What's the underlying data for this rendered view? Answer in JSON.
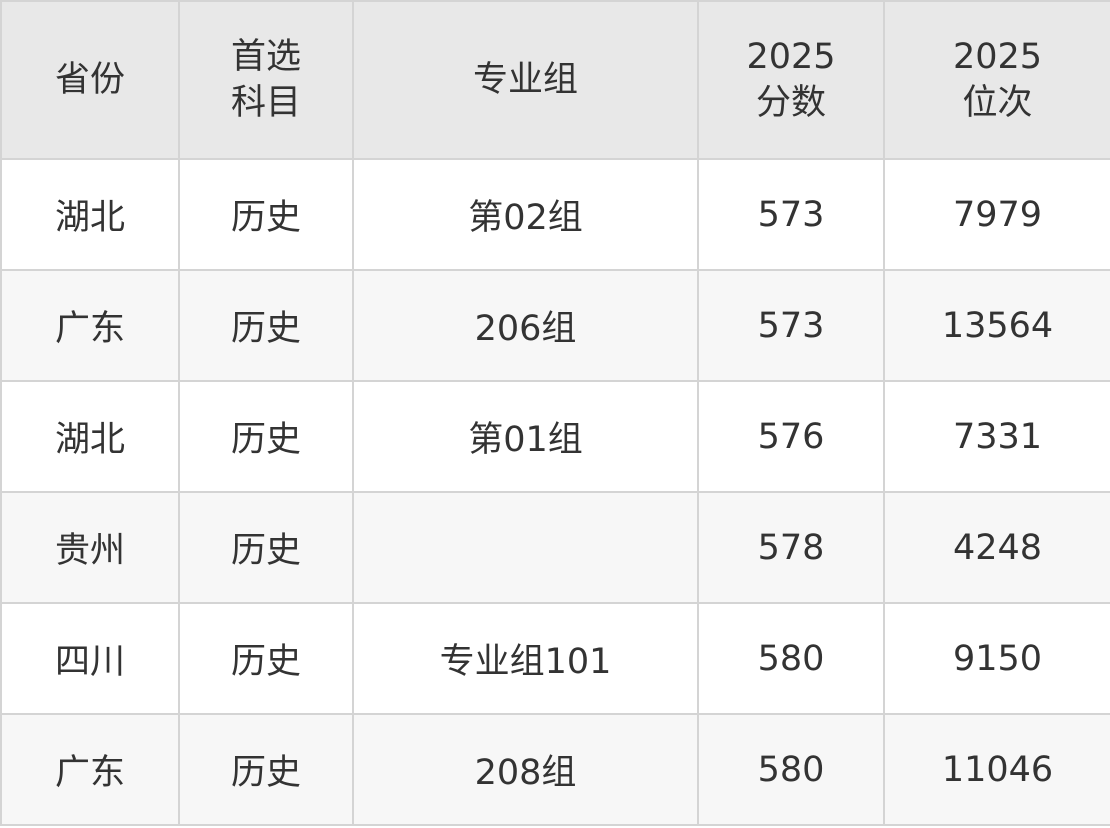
{
  "table": {
    "headers": [
      [
        "省份"
      ],
      [
        "首选",
        "科目"
      ],
      [
        "专业组"
      ],
      [
        "2025",
        "分数"
      ],
      [
        "2025",
        "位次"
      ]
    ],
    "rows": [
      [
        "湖北",
        "历史",
        "第02组",
        "573",
        "7979"
      ],
      [
        "广东",
        "历史",
        "206组",
        "573",
        "13564"
      ],
      [
        "湖北",
        "历史",
        "第01组",
        "576",
        "7331"
      ],
      [
        "贵州",
        "历史",
        "",
        "578",
        "4248"
      ],
      [
        "四川",
        "历史",
        "专业组101",
        "580",
        "9150"
      ],
      [
        "广东",
        "历史",
        "208组",
        "580",
        "11046"
      ]
    ]
  },
  "colors": {
    "header_bg": "#e8e8e8",
    "alt_row_bg": "#f7f7f7",
    "border": "#d4d4d4",
    "text": "#333333"
  }
}
